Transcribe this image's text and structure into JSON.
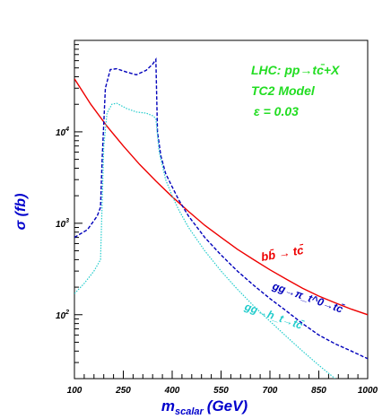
{
  "chart_data": {
    "type": "line",
    "title": "",
    "xlabel": "m",
    "xlabel_sub": "scalar",
    "xlabel_unit": "(GeV)",
    "ylabel": "σ (fb)",
    "xlim": [
      100,
      1000
    ],
    "ylim": [
      20,
      100000
    ],
    "yscale": "log",
    "grid": false,
    "x_tick_labels": [
      "100",
      "250",
      "400",
      "550",
      "700",
      "850",
      "1000"
    ],
    "x_tick_values": [
      100,
      250,
      400,
      550,
      700,
      850,
      1000
    ],
    "y_tick_labels": [
      {
        "base": "10",
        "exp": "2",
        "value": 100
      },
      {
        "base": "10",
        "exp": "3",
        "value": 1000
      },
      {
        "base": "10",
        "exp": "4",
        "value": 10000
      }
    ],
    "annotations": [
      {
        "text": "LHC: pp→tc̄+X",
        "color": "#22dd22"
      },
      {
        "text": "TC2 Model",
        "color": "#22dd22"
      },
      {
        "text": "ε = 0.03",
        "color": "#22dd22"
      }
    ],
    "series": [
      {
        "label": "bb̄ → tc̄",
        "color": "#ee0000",
        "style": "solid",
        "x": [
          100,
          150,
          200,
          250,
          300,
          350,
          400,
          450,
          500,
          550,
          600,
          650,
          700,
          750,
          800,
          850,
          900,
          950,
          1000
        ],
        "y": [
          38000,
          20000,
          11500,
          7000,
          4400,
          2900,
          1950,
          1350,
          950,
          700,
          520,
          400,
          310,
          245,
          195,
          160,
          135,
          115,
          100
        ]
      },
      {
        "label": "gg→π_t^0→tc̄",
        "color": "#0000bb",
        "style": "dashed",
        "x": [
          100,
          140,
          170,
          180,
          185,
          195,
          210,
          230,
          260,
          290,
          320,
          340,
          350,
          355,
          365,
          380,
          400,
          420,
          450,
          500,
          550,
          600,
          650,
          700,
          750,
          800,
          850,
          900,
          950,
          1000
        ],
        "y": [
          700,
          850,
          1200,
          1500,
          5000,
          30000,
          48000,
          49000,
          45000,
          42000,
          47000,
          55000,
          62000,
          10000,
          5500,
          3500,
          2500,
          1800,
          1200,
          700,
          450,
          300,
          210,
          150,
          110,
          80,
          60,
          48,
          40,
          33
        ]
      },
      {
        "label": "gg→h_t→tc̄",
        "color": "#22cccc",
        "style": "dotted",
        "x": [
          100,
          130,
          160,
          180,
          190,
          200,
          215,
          230,
          260,
          290,
          320,
          340,
          350,
          360,
          380,
          400,
          420,
          450,
          500,
          550,
          600,
          650,
          700,
          750,
          800,
          850,
          900
        ],
        "y": [
          170,
          220,
          300,
          400,
          7000,
          16000,
          20000,
          20500,
          18000,
          16500,
          16000,
          15000,
          14000,
          6000,
          3000,
          2000,
          1400,
          900,
          500,
          300,
          190,
          125,
          85,
          58,
          40,
          28,
          20
        ]
      }
    ]
  }
}
